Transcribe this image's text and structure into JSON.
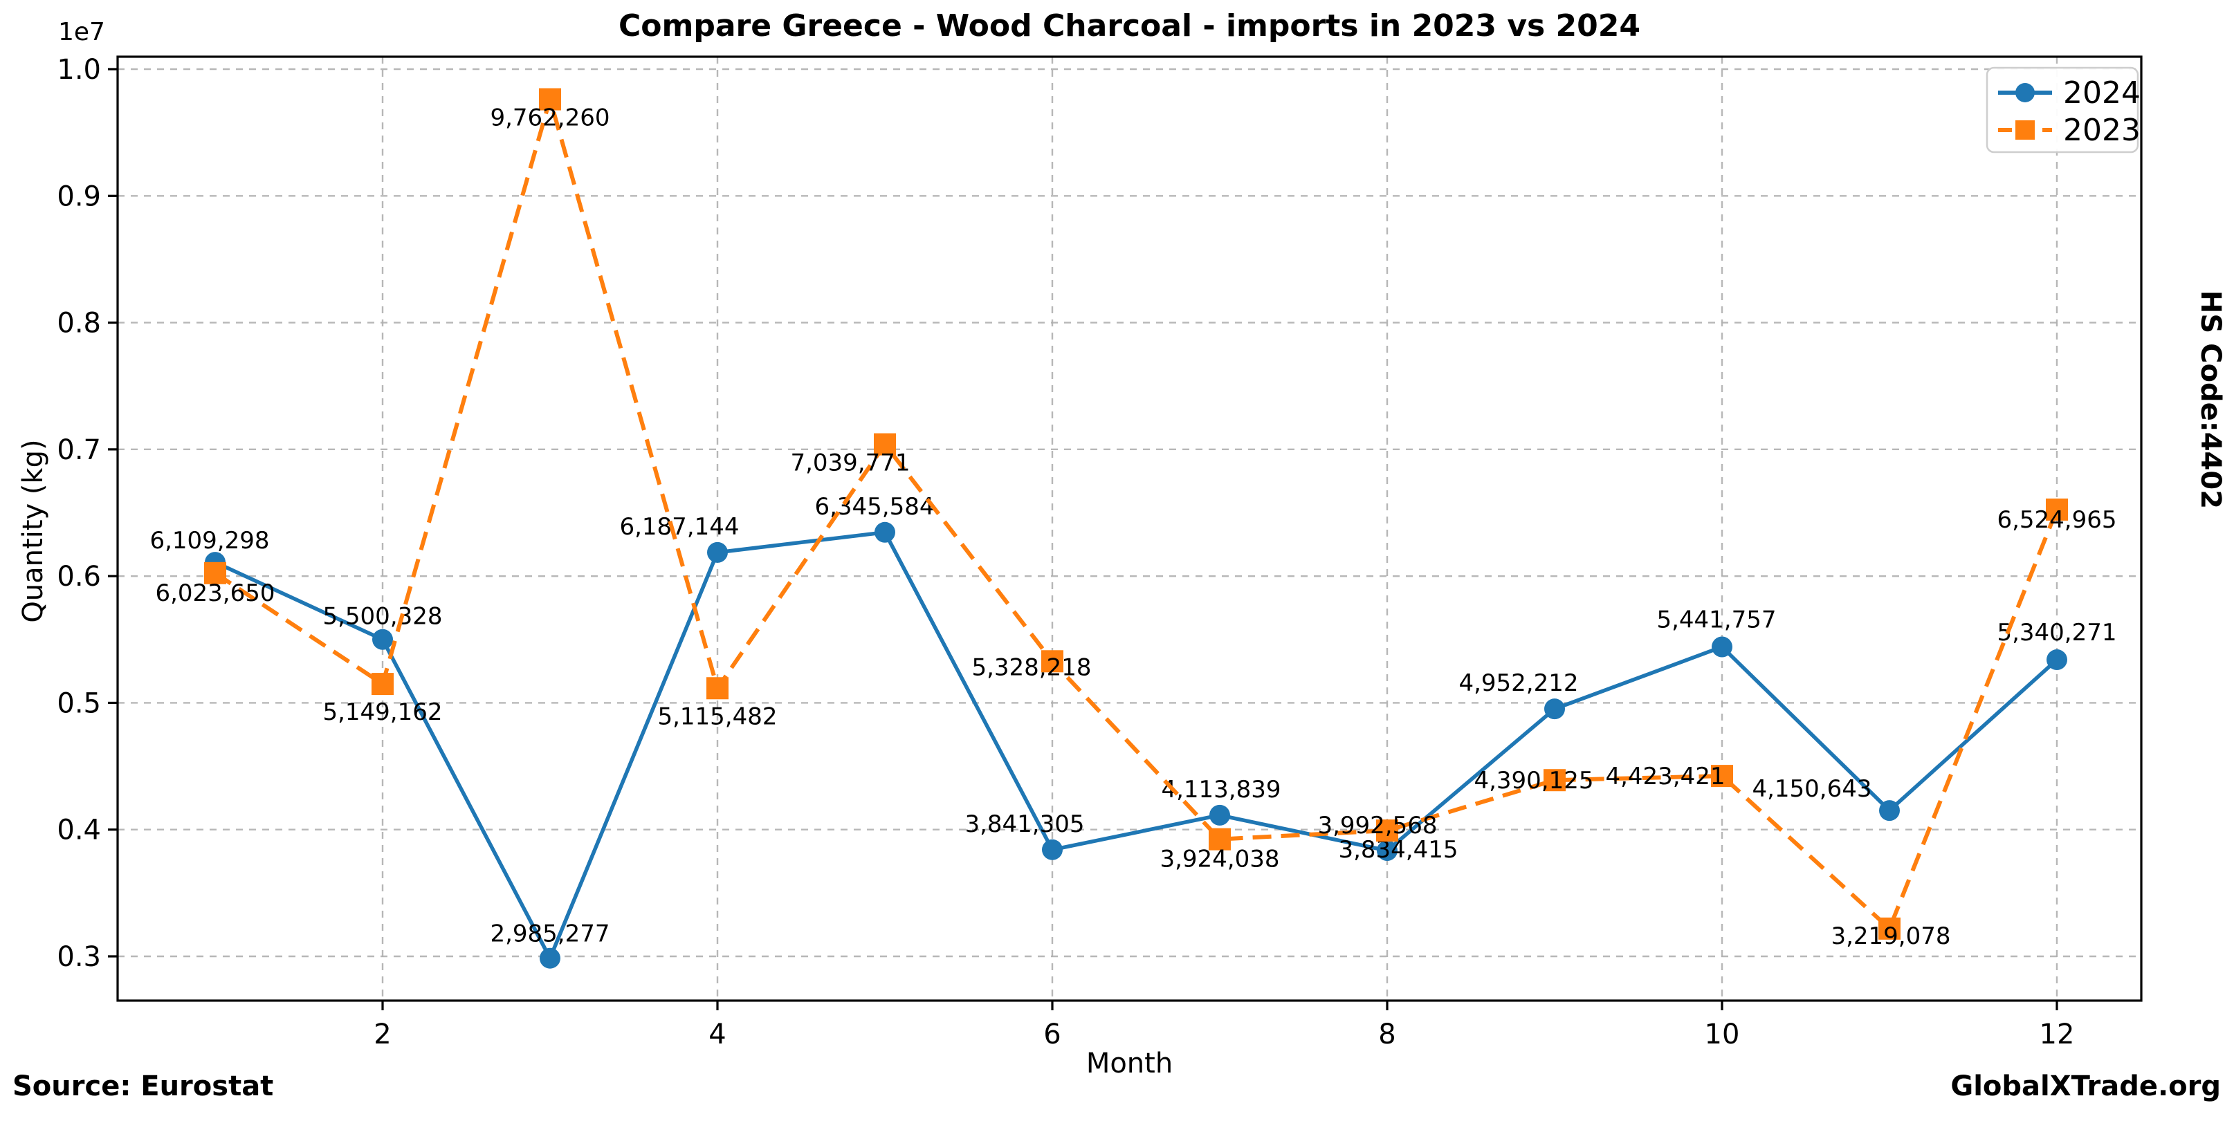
{
  "title": "Compare Greece - Wood Charcoal - imports in 2023 vs 2024",
  "y_axis": {
    "label": "Quantity (kg)",
    "offset_text": "1e7",
    "ticks": [
      "0.3",
      "0.4",
      "0.5",
      "0.6",
      "0.7",
      "0.8",
      "0.9",
      "1.0"
    ]
  },
  "x_axis": {
    "label": "Month",
    "ticks": [
      "2",
      "4",
      "6",
      "8",
      "10",
      "12"
    ]
  },
  "side_label": "HS Code:4402",
  "footer": {
    "source": "Source: Eurostat",
    "brand": "GlobalXTrade.org"
  },
  "legend": {
    "entries": [
      {
        "label": "2024",
        "color": "#1f77b4",
        "line_style": "solid",
        "marker": "circle"
      },
      {
        "label": "2023",
        "color": "#ff7f0e",
        "line_style": "dashed",
        "marker": "square"
      }
    ],
    "position": "upper right"
  },
  "chart_data": {
    "type": "line",
    "title": "Compare Greece - Wood Charcoal - imports in 2023 vs 2024",
    "xlabel": "Month",
    "ylabel": "Quantity (kg)",
    "x": [
      1,
      2,
      3,
      4,
      5,
      6,
      7,
      8,
      9,
      10,
      11,
      12
    ],
    "xlim": [
      0.42,
      12.5
    ],
    "ylim": [
      2650000,
      10100000
    ],
    "y_tick_values": [
      3000000,
      4000000,
      5000000,
      6000000,
      7000000,
      8000000,
      9000000,
      10000000
    ],
    "x_tick_values": [
      2,
      4,
      6,
      8,
      10,
      12
    ],
    "grid": true,
    "series": [
      {
        "name": "2024",
        "color": "#1f77b4",
        "line_style": "solid",
        "marker": "circle",
        "values": [
          6109298,
          5500328,
          2985277,
          6187144,
          6345584,
          3841305,
          4113839,
          3834415,
          4952212,
          5441757,
          4150643,
          5340271
        ],
        "labels": [
          "6,109,298",
          "5,500,328",
          "2,985,277",
          "6,187,144",
          "6,345,584",
          "3,841,305",
          "4,113,839",
          "3,834,415",
          "4,952,212",
          "5,441,757",
          "4,150,643",
          "5,340,271"
        ]
      },
      {
        "name": "2023",
        "color": "#ff7f0e",
        "line_style": "dashed",
        "marker": "square",
        "values": [
          6023650,
          5149162,
          9762260,
          5115482,
          7039771,
          5328218,
          3924038,
          3992568,
          4390125,
          4423421,
          3219078,
          6524965
        ],
        "labels": [
          "6,023,650",
          "5,149,162",
          "9,762,260",
          "5,115,482",
          "7,039,771",
          "5,328,218",
          "3,924,038",
          "3,992,568",
          "4,390,125",
          "4,423,421",
          "3,219,078",
          "6,524,965"
        ]
      }
    ]
  },
  "colors": {
    "grid": "#b0b0b0",
    "spine": "#000000",
    "background": "#ffffff",
    "series_2024": "#1f77b4",
    "series_2023": "#ff7f0e"
  }
}
